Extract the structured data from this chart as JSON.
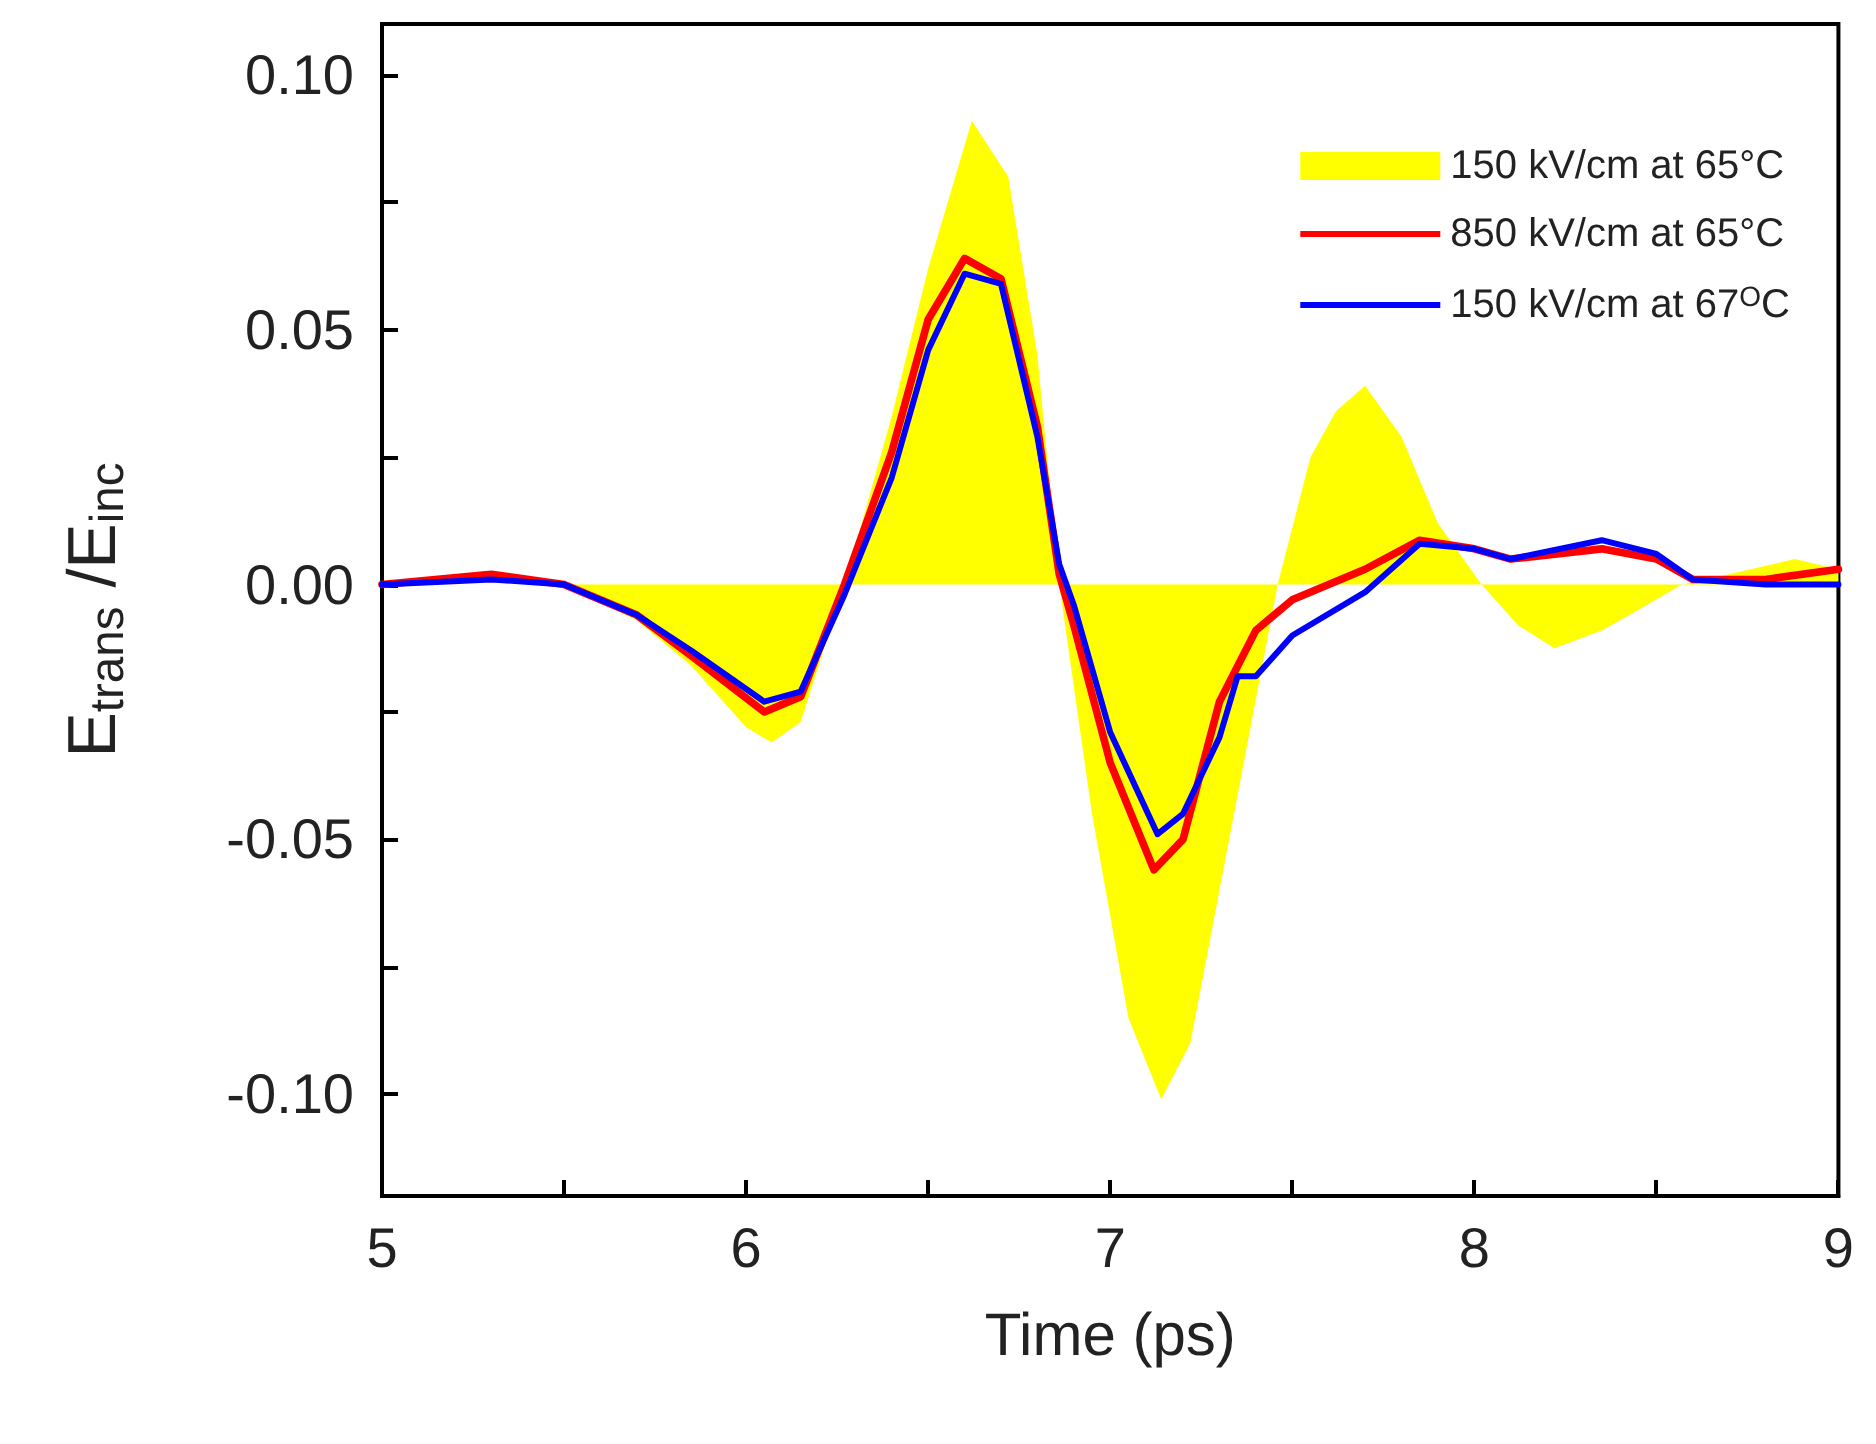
{
  "chart_data": {
    "type": "line",
    "xlabel": "Time (ps)",
    "ylabel": "E$_{trans}$ /E$_{inc}$",
    "xlim": [
      5,
      9
    ],
    "ylim": [
      -0.12,
      0.11
    ],
    "xticks": [
      5,
      {
        "value": 5.5,
        "label": null
      },
      6,
      {
        "value": 6.5,
        "label": null
      },
      7,
      {
        "value": 7.5,
        "label": null
      },
      8,
      {
        "value": 8.5,
        "label": null
      },
      9
    ],
    "yticks": [
      {
        "value": -0.1,
        "label": "-0.10"
      },
      {
        "value": -0.075,
        "label": null
      },
      {
        "value": -0.05,
        "label": "-0.05"
      },
      {
        "value": -0.025,
        "label": null
      },
      {
        "value": 0,
        "label": "0.00"
      },
      {
        "value": 0.025,
        "label": null
      },
      {
        "value": 0.05,
        "label": "0.05"
      },
      {
        "value": 0.075,
        "label": null
      },
      {
        "value": 0.1,
        "label": "0.10"
      }
    ],
    "grid": false,
    "legend": "top right",
    "marker": "none",
    "line_style": "solid",
    "series": [
      {
        "name": "150 kV/cm at 65°C",
        "type": "area",
        "color": "#ffff00",
        "x": [
          5,
          5.5,
          5.7,
          5.85,
          6.0,
          6.07,
          6.15,
          6.27,
          6.4,
          6.5,
          6.62,
          6.72,
          6.8,
          6.86,
          6.95,
          7.05,
          7.14,
          7.22,
          7.3,
          7.38,
          7.46,
          7.55,
          7.62,
          7.7,
          7.8,
          7.9,
          8.02,
          8.12,
          8.22,
          8.35,
          8.45,
          8.57,
          8.7,
          8.88,
          9
        ],
        "values": [
          0,
          0,
          -0.007,
          -0.016,
          -0.028,
          -0.031,
          -0.027,
          0,
          0.033,
          0.062,
          0.091,
          0.08,
          0.045,
          0,
          -0.045,
          -0.085,
          -0.101,
          -0.09,
          -0.06,
          -0.03,
          0,
          0.025,
          0.034,
          0.039,
          0.029,
          0.012,
          0,
          -0.008,
          -0.0125,
          -0.009,
          -0.005,
          0,
          0.002,
          0.005,
          0.003
        ]
      },
      {
        "name": "850 kV/cm at 65°C",
        "color": "#ff0000",
        "x": [
          5,
          5.3,
          5.5,
          5.7,
          5.85,
          6.05,
          6.15,
          6.27,
          6.4,
          6.5,
          6.6,
          6.7,
          6.8,
          6.86,
          6.9,
          7.0,
          7.12,
          7.2,
          7.3,
          7.4,
          7.5,
          7.7,
          7.85,
          8.0,
          8.1,
          8.35,
          8.5,
          8.6,
          8.8,
          9
        ],
        "values": [
          0,
          0.002,
          0,
          -0.006,
          -0.014,
          -0.025,
          -0.022,
          0,
          0.026,
          0.052,
          0.064,
          0.06,
          0.031,
          0.002,
          -0.008,
          -0.035,
          -0.056,
          -0.05,
          -0.023,
          -0.009,
          -0.003,
          0.003,
          0.0087,
          0.007,
          0.005,
          0.007,
          0.005,
          0.001,
          0.001,
          0.003
        ]
      },
      {
        "name": "150 kV/cm at 67$^{O}$C",
        "color": "#0000ff",
        "x": [
          5,
          5.3,
          5.5,
          5.7,
          5.85,
          6.05,
          6.15,
          6.27,
          6.4,
          6.5,
          6.6,
          6.7,
          6.8,
          6.86,
          6.9,
          7.0,
          7.13,
          7.2,
          7.3,
          7.35,
          7.4,
          7.5,
          7.7,
          7.85,
          8.0,
          8.1,
          8.35,
          8.5,
          8.6,
          8.8,
          9
        ],
        "values": [
          0,
          0.001,
          0,
          -0.006,
          -0.013,
          -0.023,
          -0.021,
          -0.002,
          0.021,
          0.046,
          0.061,
          0.059,
          0.029,
          0.004,
          -0.004,
          -0.029,
          -0.049,
          -0.045,
          -0.03,
          -0.018,
          -0.018,
          -0.01,
          -0.0015,
          0.008,
          0.007,
          0.005,
          0.0087,
          0.006,
          0.001,
          0.0,
          0
        ]
      }
    ]
  }
}
